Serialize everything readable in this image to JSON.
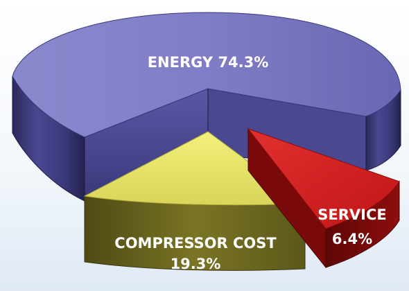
{
  "chart_data": {
    "type": "pie",
    "style": "3d-exploded",
    "slices": [
      {
        "key": "energy",
        "label": "ENERGY",
        "percent_text": "74.3%",
        "value": 74.3,
        "color": "#7b78c0"
      },
      {
        "key": "compressor",
        "label": "COMPRESSOR COST",
        "percent_text": "19.3%",
        "value": 19.3,
        "color": "#e6e36a"
      },
      {
        "key": "service",
        "label": "SERVICE",
        "percent_text": "6.4%",
        "value": 6.4,
        "color": "#cc1f1f"
      }
    ],
    "legend": "none"
  }
}
